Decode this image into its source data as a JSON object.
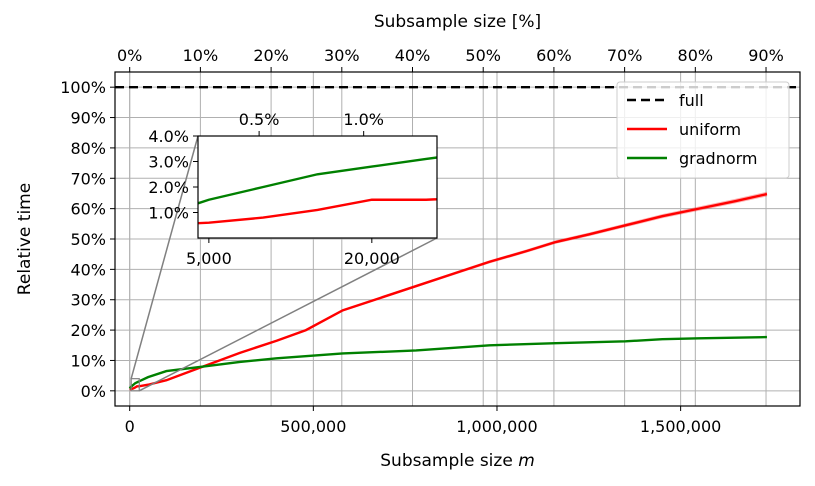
{
  "chart_data": {
    "type": "line",
    "xlabel_prefix": "Subsample size",
    "xlabel_var": "m",
    "x2label": "Subsample size [%]",
    "ylabel": "Relative time",
    "xlim": [
      -40000,
      1825000
    ],
    "ylim": [
      -0.05,
      1.05
    ],
    "xticks": [
      0,
      500000,
      1000000,
      1500000
    ],
    "xtick_labels": [
      "0",
      "500,000",
      "1,000,000",
      "1,500,000"
    ],
    "x2ticks": [
      0,
      10,
      20,
      30,
      40,
      50,
      60,
      70,
      80,
      90
    ],
    "x2tick_labels": [
      "0%",
      "10%",
      "20%",
      "30%",
      "40%",
      "50%",
      "60%",
      "70%",
      "80%",
      "90%"
    ],
    "x2_full_size": 1925000,
    "yticks": [
      0,
      0.1,
      0.2,
      0.3,
      0.4,
      0.5,
      0.6,
      0.7,
      0.8,
      0.9,
      1.0
    ],
    "ytick_labels": [
      "0%",
      "10%",
      "20%",
      "30%",
      "40%",
      "50%",
      "60%",
      "70%",
      "80%",
      "90%",
      "100%"
    ],
    "grid": true,
    "legend_position": "top-right",
    "series": [
      {
        "name": "full",
        "color": "#000000",
        "style": "dashed",
        "x": [
          -40000,
          1825000
        ],
        "y": [
          1.0,
          1.0
        ]
      },
      {
        "name": "uniform",
        "color": "#ff0000",
        "style": "solid",
        "band": 0.008,
        "x": [
          0,
          5000,
          10000,
          15000,
          20000,
          25000,
          50000,
          100000,
          200000,
          300000,
          400000,
          480000,
          580000,
          680000,
          780000,
          880000,
          980000,
          1080000,
          1160000,
          1250000,
          1350000,
          1450000,
          1550000,
          1650000,
          1735000
        ],
        "y": [
          0.005,
          0.006,
          0.008,
          0.011,
          0.015,
          0.015,
          0.02,
          0.035,
          0.08,
          0.125,
          0.165,
          0.2,
          0.265,
          0.305,
          0.345,
          0.385,
          0.425,
          0.46,
          0.49,
          0.515,
          0.545,
          0.575,
          0.6,
          0.625,
          0.648
        ]
      },
      {
        "name": "gradnorm",
        "color": "#008000",
        "style": "solid",
        "x": [
          0,
          5000,
          10000,
          15000,
          20000,
          25000,
          50000,
          100000,
          200000,
          300000,
          400000,
          580000,
          780000,
          980000,
          1160000,
          1350000,
          1450000,
          1550000,
          1735000
        ],
        "y": [
          0.008,
          0.015,
          0.02,
          0.025,
          0.028,
          0.031,
          0.045,
          0.065,
          0.08,
          0.095,
          0.107,
          0.123,
          0.133,
          0.15,
          0.157,
          0.163,
          0.17,
          0.173,
          0.177
        ]
      }
    ],
    "inset": {
      "xlim": [
        4000,
        26000
      ],
      "ylim": [
        0.0,
        0.04
      ],
      "xticks": [
        5000,
        20000
      ],
      "xtick_labels": [
        "5,000",
        "20,000"
      ],
      "x2ticks": [
        0.5,
        1.0
      ],
      "x2tick_labels": [
        "0.5%",
        "1.0%"
      ],
      "yticks": [
        0.01,
        0.02,
        0.03,
        0.04
      ],
      "ytick_labels": [
        "1.0%",
        "2.0%",
        "3.0%",
        "4.0%"
      ]
    }
  }
}
